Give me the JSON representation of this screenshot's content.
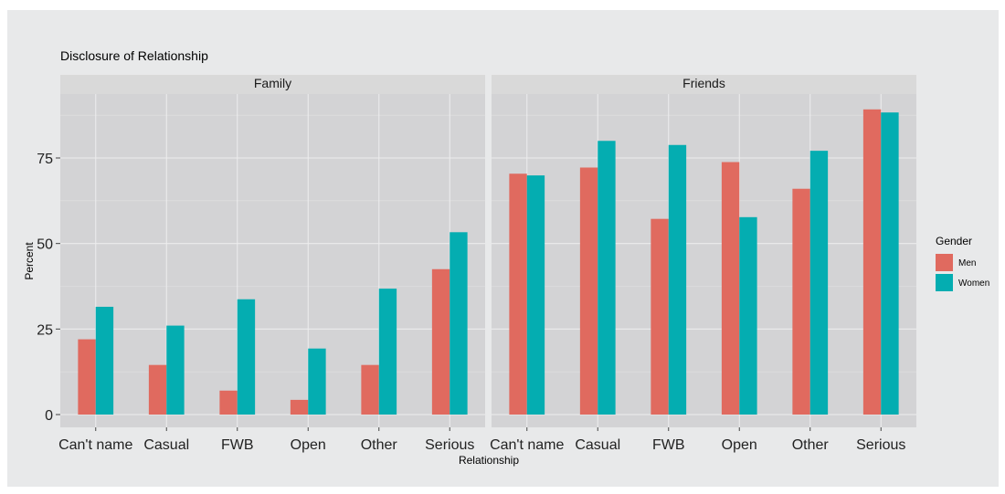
{
  "chart_data": {
    "type": "bar",
    "title": "Disclosure of Relationship",
    "xlabel": "Relationship",
    "ylabel": "Percent",
    "ylim": [
      -2.5,
      92
    ],
    "yticks": [
      0,
      25,
      50,
      75
    ],
    "categories": [
      "Can't name",
      "Casual",
      "FWB",
      "Open",
      "Other",
      "Serious"
    ],
    "legend": {
      "title": "Gender",
      "position": "right",
      "entries": [
        {
          "name": "Men",
          "color": "#e06a5f"
        },
        {
          "name": "Women",
          "color": "#04adb1"
        }
      ]
    },
    "panels": [
      {
        "name": "Family",
        "series": [
          {
            "name": "Men",
            "values": [
              22,
              14.5,
              7,
              4.3,
              14.5,
              42.5
            ]
          },
          {
            "name": "Women",
            "values": [
              31.5,
              26,
              33.7,
              19.3,
              36.8,
              53.3
            ]
          }
        ]
      },
      {
        "name": "Friends",
        "series": [
          {
            "name": "Men",
            "values": [
              70.4,
              72.2,
              57.2,
              73.8,
              66,
              89.2
            ]
          },
          {
            "name": "Women",
            "values": [
              69.9,
              80,
              78.8,
              57.7,
              77.1,
              88.3
            ]
          }
        ]
      }
    ],
    "grid": true
  }
}
